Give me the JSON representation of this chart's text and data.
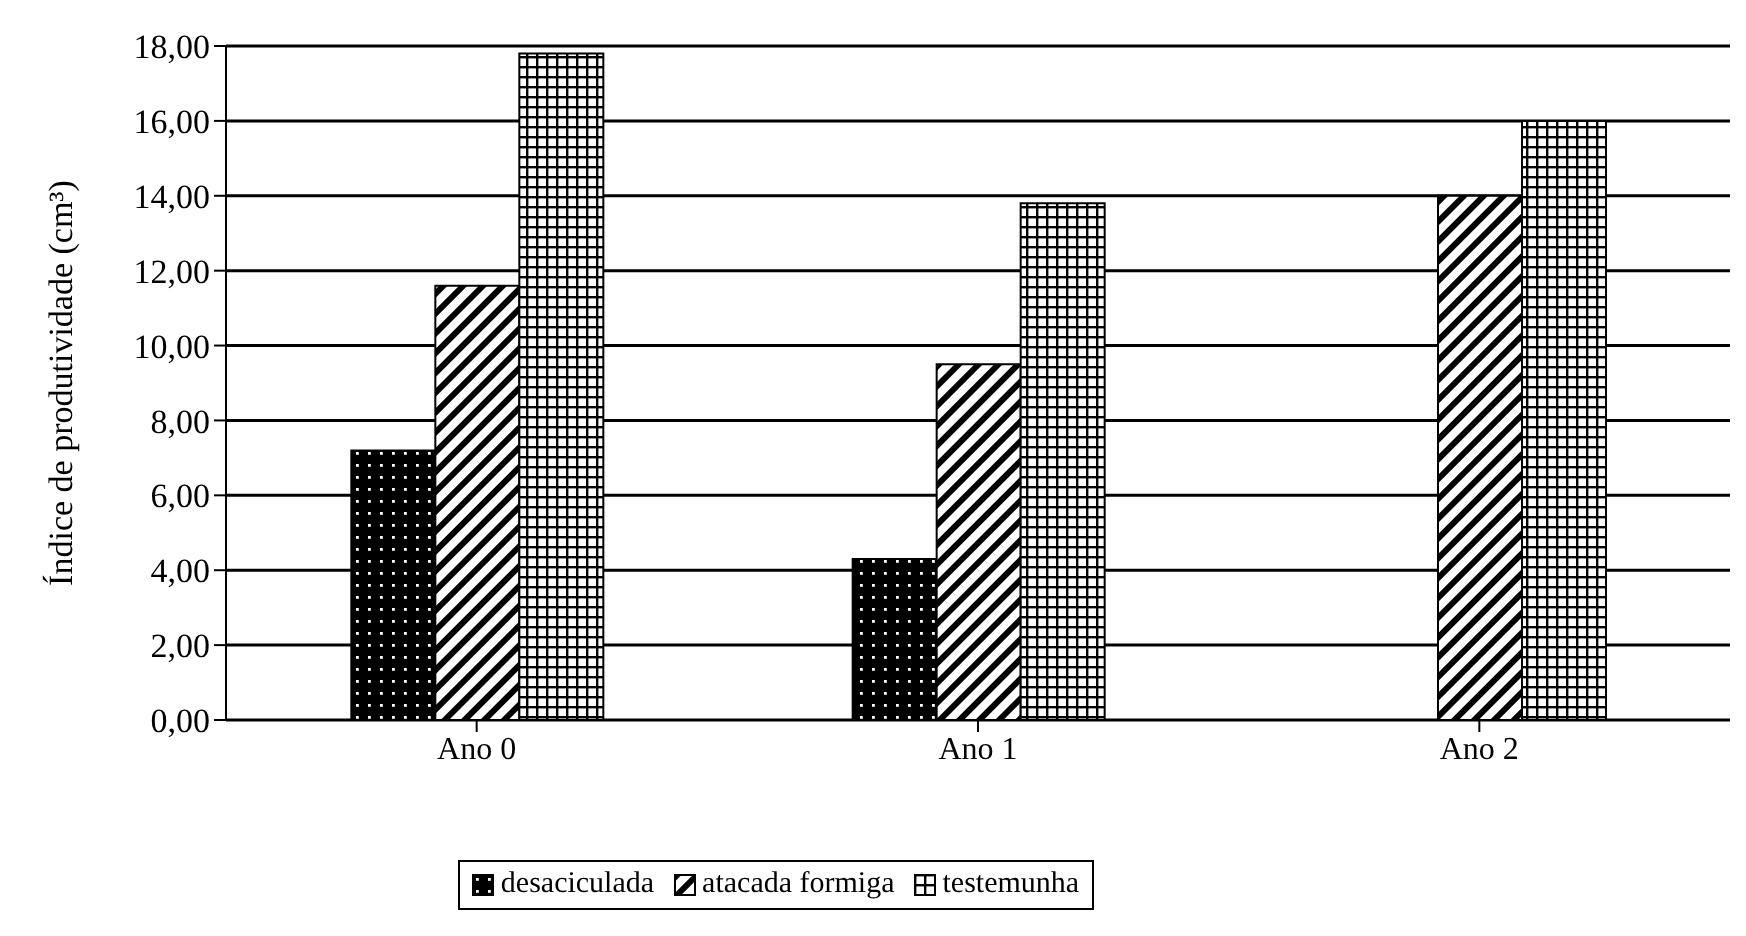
{
  "chart_data": {
    "type": "bar",
    "ylabel": "Índice de produtividade  (cm³)",
    "categories": [
      "Ano 0",
      "Ano 1",
      "Ano 2"
    ],
    "series": [
      {
        "name": "desaciculada",
        "color": "#000000",
        "values": [
          7.2,
          4.3,
          null
        ]
      },
      {
        "name": "atacada formiga",
        "color": "#000000",
        "values": [
          11.6,
          9.5,
          14.0
        ]
      },
      {
        "name": "testemunha",
        "color": "#000000",
        "values": [
          17.8,
          13.8,
          16.0
        ]
      }
    ],
    "ylim": [
      0,
      18
    ],
    "yticks": [
      {
        "value": 0,
        "label": "0,00"
      },
      {
        "value": 2,
        "label": "2,00"
      },
      {
        "value": 4,
        "label": "4,00"
      },
      {
        "value": 6,
        "label": "6,00"
      },
      {
        "value": 8,
        "label": "8,00"
      },
      {
        "value": 10,
        "label": "10,00"
      },
      {
        "value": 12,
        "label": "12,00"
      },
      {
        "value": 14,
        "label": "14,00"
      },
      {
        "value": 16,
        "label": "16,00"
      },
      {
        "value": 18,
        "label": "18,00"
      }
    ],
    "grid": "y",
    "legend": "bottom"
  }
}
